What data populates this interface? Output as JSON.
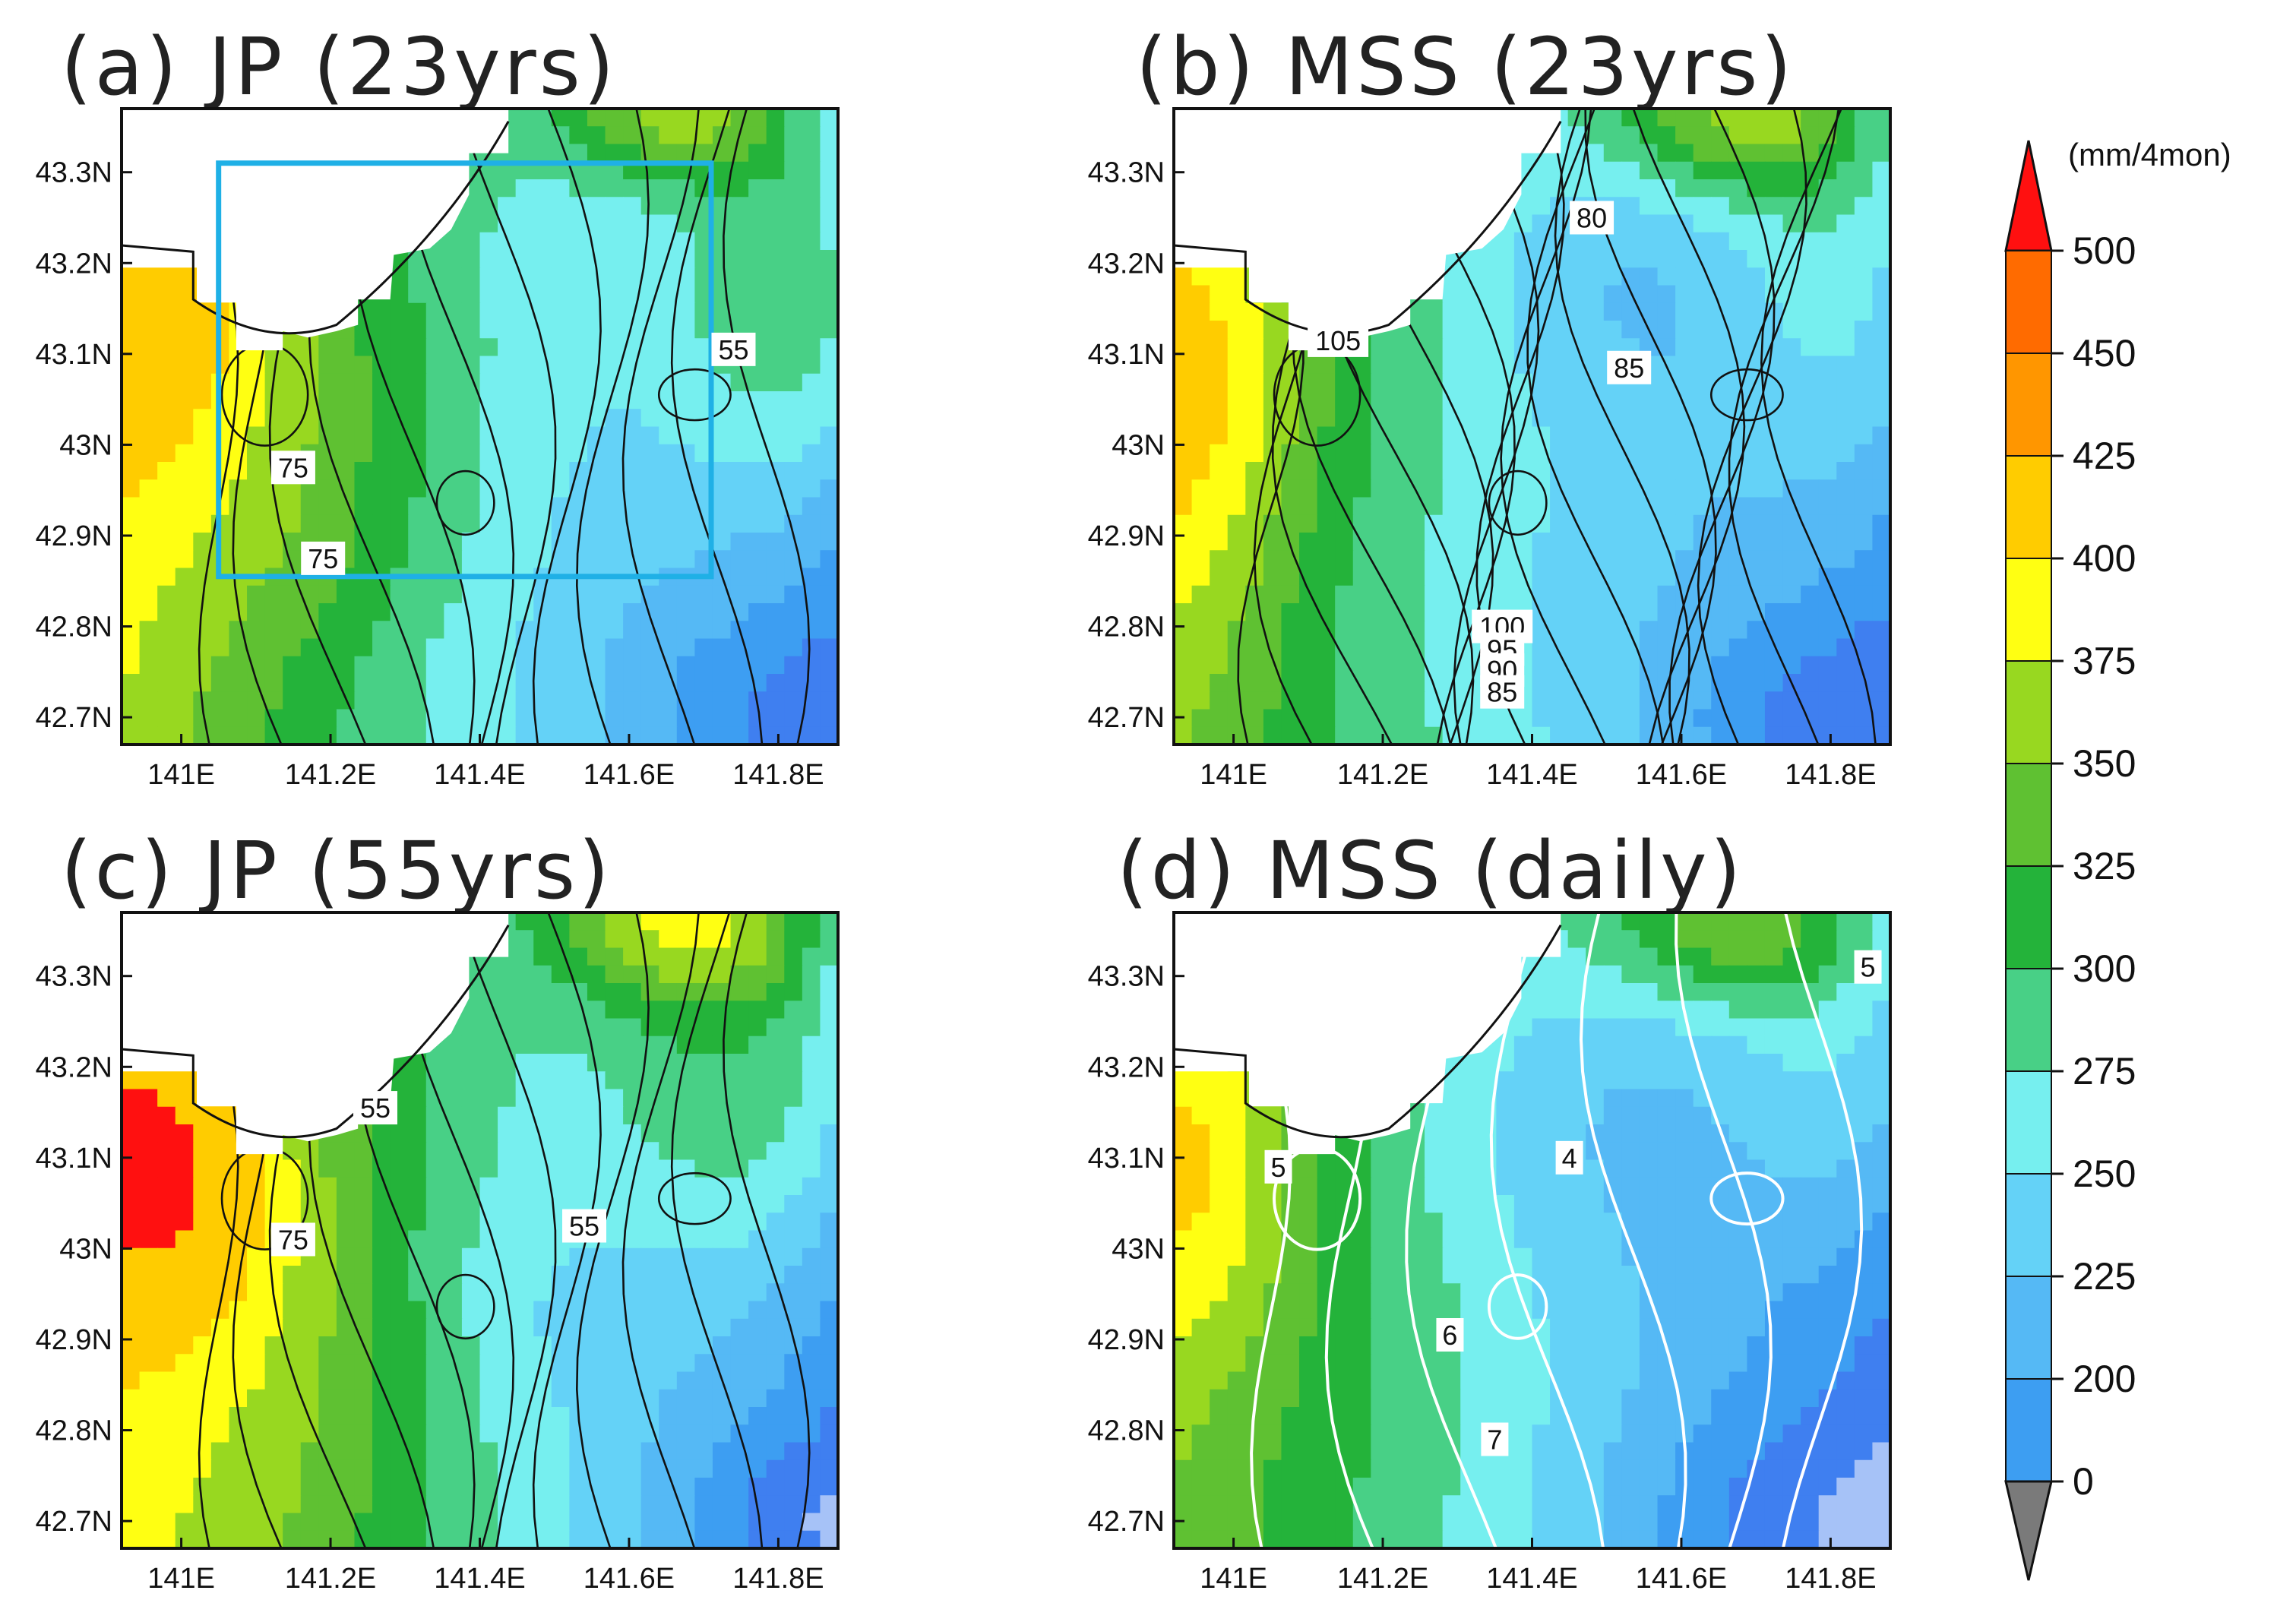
{
  "colors": {
    "levels": [
      "#a6c2f7",
      "#3f7ff0",
      "#3d9ef2",
      "#55b9f5",
      "#64d2f7",
      "#76efef",
      "#48d086",
      "#24b33a",
      "#5fc132",
      "#98d820",
      "#ffff12",
      "#ffcc00",
      "#ff9600",
      "#ff6b00",
      "#ff1010"
    ],
    "below": "#7a7a7a",
    "frame": "#111111",
    "study_box": "#1fb0e6",
    "contour_dark": "#111111",
    "contour_light": "#ffffff"
  },
  "chart_data": [
    {
      "type": "heatmap",
      "id": "a",
      "title": "(a) JP (23yrs)",
      "xlim": [
        140.92,
        141.88
      ],
      "ylim": [
        42.67,
        43.37
      ],
      "xticks": [
        "141E",
        "141.2E",
        "141.4E",
        "141.6E",
        "141.8E"
      ],
      "yticks": [
        "43.3N",
        "43.2N",
        "43.1N",
        "43N",
        "42.9N",
        "42.8N",
        "42.7N"
      ],
      "field": "jp23",
      "contour_color": "dark",
      "contour_labels": [
        {
          "text": "55",
          "lon": 141.74,
          "lat": 43.105
        },
        {
          "text": "75",
          "lon": 141.15,
          "lat": 42.975
        },
        {
          "text": "75",
          "lon": 141.19,
          "lat": 42.875
        }
      ],
      "study_box": {
        "lon": [
          141.05,
          141.71
        ],
        "lat": [
          42.855,
          43.31
        ]
      }
    },
    {
      "type": "heatmap",
      "id": "b",
      "title": "(b) MSS (23yrs)",
      "xlim": [
        140.92,
        141.88
      ],
      "ylim": [
        42.67,
        43.37
      ],
      "xticks": [
        "141E",
        "141.2E",
        "141.4E",
        "141.6E",
        "141.8E"
      ],
      "yticks": [
        "43.3N",
        "43.2N",
        "43.1N",
        "43N",
        "42.9N",
        "42.8N",
        "42.7N"
      ],
      "field": "mss23",
      "contour_color": "dark",
      "contour_labels": [
        {
          "text": "80",
          "lon": 141.48,
          "lat": 43.25
        },
        {
          "text": "105",
          "lon": 141.14,
          "lat": 43.115
        },
        {
          "text": "85",
          "lon": 141.53,
          "lat": 43.085
        },
        {
          "text": "100",
          "lon": 141.36,
          "lat": 42.8
        },
        {
          "text": "95",
          "lon": 141.36,
          "lat": 42.775
        },
        {
          "text": "90",
          "lon": 141.36,
          "lat": 42.752
        },
        {
          "text": "85",
          "lon": 141.36,
          "lat": 42.728
        }
      ]
    },
    {
      "type": "heatmap",
      "id": "c",
      "title": "(c) JP (55yrs)",
      "xlim": [
        140.92,
        141.88
      ],
      "ylim": [
        42.67,
        43.37
      ],
      "xticks": [
        "141E",
        "141.2E",
        "141.4E",
        "141.6E",
        "141.8E"
      ],
      "yticks": [
        "43.3N",
        "43.2N",
        "43.1N",
        "43N",
        "42.9N",
        "42.8N",
        "42.7N"
      ],
      "field": "jp55",
      "contour_color": "dark",
      "contour_labels": [
        {
          "text": "55",
          "lon": 141.26,
          "lat": 43.155
        },
        {
          "text": "75",
          "lon": 141.15,
          "lat": 43.01
        },
        {
          "text": "55",
          "lon": 141.54,
          "lat": 43.025
        }
      ]
    },
    {
      "type": "heatmap",
      "id": "d",
      "title": "(d) MSS (daily)",
      "xlim": [
        140.92,
        141.88
      ],
      "ylim": [
        42.67,
        43.37
      ],
      "xticks": [
        "141E",
        "141.2E",
        "141.4E",
        "141.6E",
        "141.8E"
      ],
      "yticks": [
        "43.3N",
        "43.2N",
        "43.1N",
        "43N",
        "42.9N",
        "42.8N",
        "42.7N"
      ],
      "field": "mssdaily",
      "contour_color": "light",
      "contour_labels": [
        {
          "text": "5",
          "lon": 141.85,
          "lat": 43.31
        },
        {
          "text": "4",
          "lon": 141.45,
          "lat": 43.1
        },
        {
          "text": "5",
          "lon": 141.06,
          "lat": 43.09
        },
        {
          "text": "6",
          "lon": 141.29,
          "lat": 42.905
        },
        {
          "text": "7",
          "lon": 141.35,
          "lat": 42.79
        }
      ]
    }
  ],
  "colorbar": {
    "unit": "(mm/4mon)",
    "boundaries": [
      "500",
      "450",
      "425",
      "400",
      "375",
      "350",
      "325",
      "300",
      "275",
      "250",
      "225",
      "200",
      "0"
    ]
  }
}
